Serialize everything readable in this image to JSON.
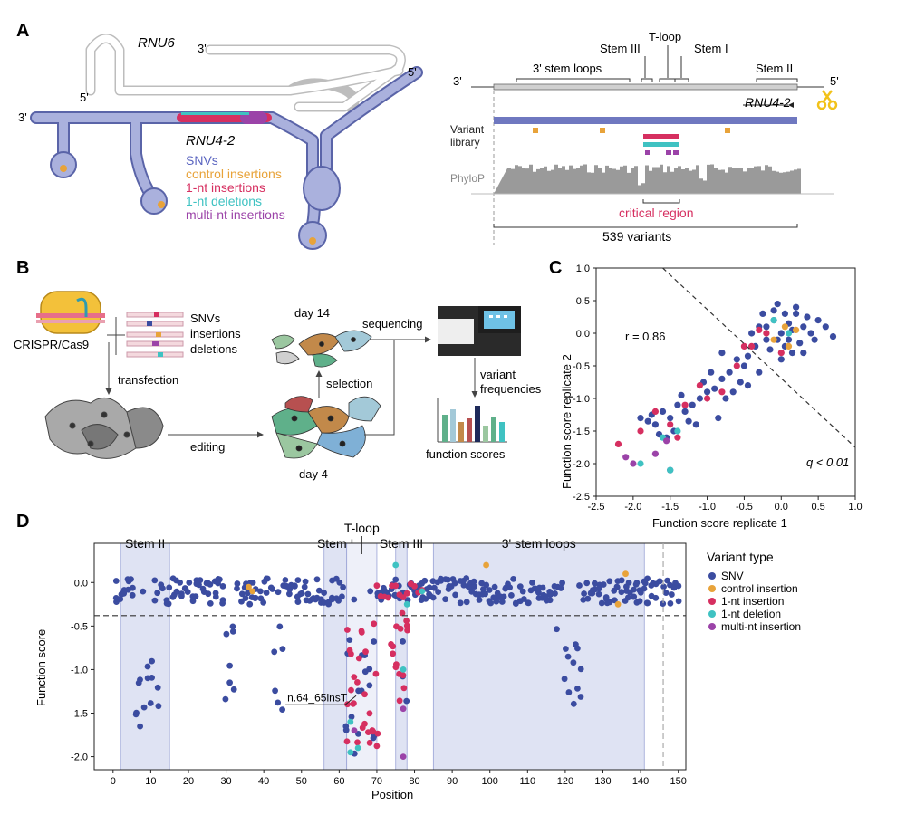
{
  "panels": {
    "a": "A",
    "b": "B",
    "c": "C",
    "d": "D"
  },
  "colors": {
    "snv": "#3b4ca0",
    "control_insertion": "#e8a33a",
    "ins1": "#d62f60",
    "del1": "#3fc2c2",
    "multi": "#9b43a8",
    "region": "#dfe3f3",
    "rnu4_fill": "#9aa3d6",
    "rnu6_stroke": "#bbbbbb",
    "phylop": "#9a9a9a"
  },
  "panel_a": {
    "rnu6_label": "RNU6",
    "rnu4_label": "RNU4-2",
    "prime3": "3'",
    "prime5": "5'",
    "legend": [
      "SNVs",
      "control insertions",
      "1-nt insertions",
      "1-nt deletions",
      "multi-nt insertions"
    ],
    "track": {
      "left_end": "3'",
      "right_end": "5'",
      "regions": [
        "3' stem loops",
        "Stem III",
        "T-loop",
        "Stem I",
        "Stem II"
      ],
      "gene_label": "RNU4-2",
      "variant_library": "Variant\nlibrary",
      "phylop": "PhyloP",
      "critical_region": "critical region",
      "total": "539 variants"
    }
  },
  "panel_b": {
    "crispr": "CRISPR/Cas9",
    "lib_labels": [
      "SNVs",
      "insertions",
      "deletions"
    ],
    "transfection": "transfection",
    "editing": "editing",
    "selection": "selection",
    "day14": "day 14",
    "day4": "day 4",
    "sequencing": "sequencing",
    "variant_frequencies": "variant\nfrequencies",
    "function_scores": "function scores"
  },
  "panel_c": {
    "xlabel": "Function score replicate 1",
    "ylabel": "Function score replicate 2",
    "r_text": "r = 0.86",
    "q_text": "q < 0.01"
  },
  "chart_data": [
    {
      "type": "scatter",
      "xlabel": "Function score replicate 1",
      "ylabel": "Function score replicate 2",
      "xlim": [
        -2.5,
        1.0
      ],
      "ylim": [
        -2.5,
        1.0
      ],
      "xticks": [
        "-2.5",
        "-2.0",
        "-1.5",
        "-1.0",
        "-0.5",
        "0.0",
        "0.5",
        "1.0"
      ],
      "yticks": [
        "1.0",
        "0.5",
        "0.0",
        "-0.5",
        "-1.0",
        "-1.5",
        "-2.0",
        "-2.5"
      ],
      "annotations": [
        "r = 0.86",
        "q < 0.01"
      ],
      "series": [
        {
          "name": "SNV",
          "points": [
            [
              0.0,
              0.0
            ],
            [
              -0.1,
              0.2
            ],
            [
              0.1,
              -0.1
            ],
            [
              0.2,
              0.3
            ],
            [
              -0.2,
              -0.1
            ],
            [
              0.3,
              0.1
            ],
            [
              -0.05,
              0.45
            ],
            [
              0.15,
              -0.3
            ],
            [
              -0.3,
              0.1
            ],
            [
              0.05,
              0.3
            ],
            [
              0.4,
              0.0
            ],
            [
              -0.15,
              -0.25
            ],
            [
              0.25,
              -0.15
            ],
            [
              -0.35,
              -0.2
            ],
            [
              0.1,
              0.15
            ],
            [
              0.0,
              -0.4
            ],
            [
              0.2,
              0.4
            ],
            [
              -0.4,
              0.0
            ],
            [
              0.35,
              0.25
            ],
            [
              -0.1,
              0.35
            ],
            [
              0.45,
              -0.1
            ],
            [
              -0.25,
              0.3
            ],
            [
              0.05,
              -0.2
            ],
            [
              0.3,
              -0.3
            ],
            [
              -0.45,
              -0.35
            ],
            [
              0.15,
              0.05
            ],
            [
              -0.05,
              -0.1
            ],
            [
              0.5,
              0.2
            ],
            [
              0.7,
              -0.05
            ],
            [
              -0.2,
              0.1
            ],
            [
              -0.5,
              -0.5
            ],
            [
              -0.6,
              -0.4
            ],
            [
              -0.7,
              -0.6
            ],
            [
              -0.55,
              -0.75
            ],
            [
              -0.8,
              -0.7
            ],
            [
              -0.9,
              -0.85
            ],
            [
              -1.0,
              -0.9
            ],
            [
              -0.75,
              -1.0
            ],
            [
              -1.1,
              -1.0
            ],
            [
              -1.2,
              -1.1
            ],
            [
              -0.95,
              -0.6
            ],
            [
              -0.65,
              -0.9
            ],
            [
              -1.3,
              -1.2
            ],
            [
              -1.4,
              -1.1
            ],
            [
              -1.25,
              -1.35
            ],
            [
              -1.5,
              -1.3
            ],
            [
              -1.6,
              -1.2
            ],
            [
              -1.45,
              -1.5
            ],
            [
              -1.7,
              -1.4
            ],
            [
              -1.8,
              -1.35
            ],
            [
              -1.55,
              -1.6
            ],
            [
              -1.35,
              -0.95
            ],
            [
              -0.85,
              -1.3
            ],
            [
              -1.05,
              -0.75
            ],
            [
              -0.45,
              -0.8
            ],
            [
              -1.75,
              -1.25
            ],
            [
              -1.65,
              -1.55
            ],
            [
              -1.5,
              -2.1
            ],
            [
              0.6,
              0.1
            ],
            [
              -0.3,
              -0.6
            ],
            [
              -0.8,
              -0.3
            ],
            [
              -1.15,
              -1.4
            ],
            [
              -1.9,
              -1.3
            ]
          ]
        },
        {
          "name": "control insertion",
          "points": [
            [
              0.05,
              0.1
            ],
            [
              -0.1,
              -0.1
            ],
            [
              0.2,
              0.05
            ],
            [
              -0.2,
              0.0
            ],
            [
              0.1,
              -0.2
            ]
          ]
        },
        {
          "name": "1-nt insertion",
          "points": [
            [
              -0.2,
              0.0
            ],
            [
              0.0,
              -0.3
            ],
            [
              -0.4,
              -0.2
            ],
            [
              -0.6,
              -0.5
            ],
            [
              -1.0,
              -1.0
            ],
            [
              -1.3,
              -1.1
            ],
            [
              -1.5,
              -1.4
            ],
            [
              -1.7,
              -1.2
            ],
            [
              -1.1,
              -0.8
            ],
            [
              -0.8,
              -0.9
            ],
            [
              -1.9,
              -1.5
            ],
            [
              -2.2,
              -1.7
            ],
            [
              -1.4,
              -1.6
            ],
            [
              -0.5,
              -0.2
            ],
            [
              -0.3,
              0.05
            ]
          ]
        },
        {
          "name": "1-nt deletion",
          "points": [
            [
              -1.4,
              -1.5
            ],
            [
              -1.9,
              -2.0
            ],
            [
              -1.5,
              -2.1
            ],
            [
              0.1,
              0.0
            ],
            [
              -0.1,
              0.2
            ],
            [
              -1.6,
              -1.6
            ]
          ]
        },
        {
          "name": "multi-nt insertion",
          "points": [
            [
              -2.1,
              -1.9
            ],
            [
              -1.7,
              -1.85
            ],
            [
              -2.0,
              -2.0
            ],
            [
              -1.55,
              -1.65
            ]
          ]
        }
      ]
    },
    {
      "type": "scatter",
      "xlabel": "Position",
      "ylabel": "Function score",
      "xlim": [
        -5,
        152
      ],
      "ylim": [
        -2.15,
        0.45
      ],
      "xticks": [
        "0",
        "10",
        "20",
        "30",
        "40",
        "50",
        "60",
        "70",
        "80",
        "90",
        "100",
        "110",
        "120",
        "130",
        "140",
        "150"
      ],
      "yticks": [
        "0.0",
        "-0.5",
        "-1.0",
        "-1.5",
        "-2.0"
      ],
      "threshold": -0.38,
      "regions": [
        {
          "label": "Stem II",
          "from": 2,
          "to": 15
        },
        {
          "label": "Stem I",
          "from": 56,
          "to": 62
        },
        {
          "label": "T-loop",
          "from": 62,
          "to": 70
        },
        {
          "label": "Stem III",
          "from": 75,
          "to": 78
        },
        {
          "label": "3' stem loops",
          "from": 85,
          "to": 141
        }
      ],
      "dashed_position": 146,
      "callout": {
        "label": "n.64_65insT",
        "x": 64.5,
        "y": -1.3
      },
      "legend_title": "Variant type",
      "legend": [
        "SNV",
        "control insertion",
        "1-nt insertion",
        "1-nt deletion",
        "multi-nt insertion"
      ]
    }
  ]
}
